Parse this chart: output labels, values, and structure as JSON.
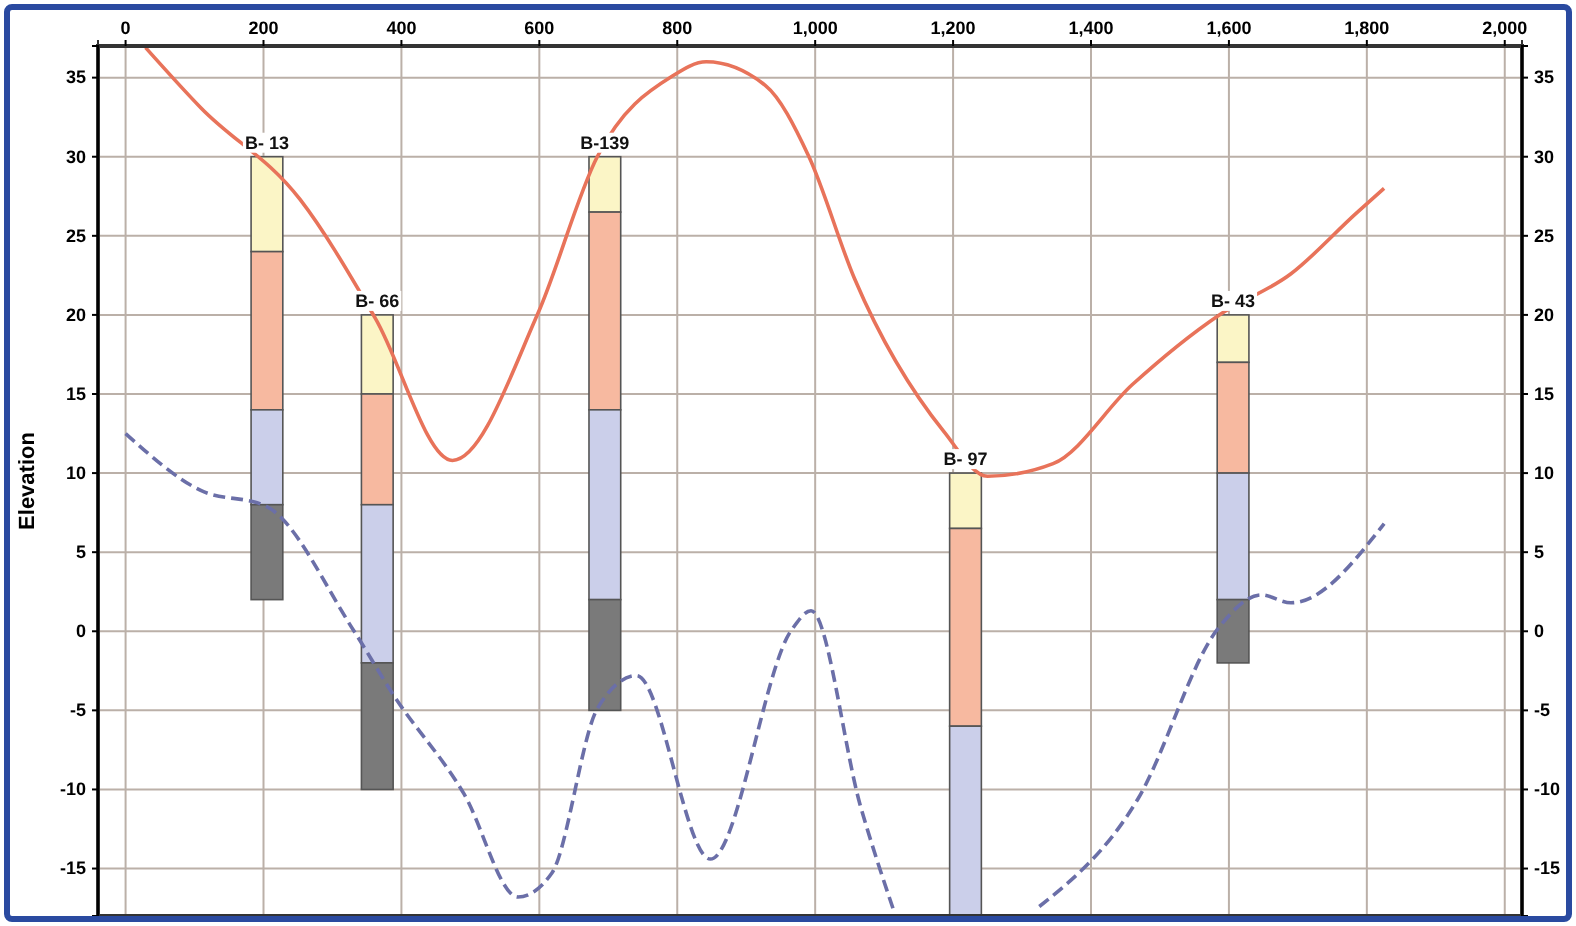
{
  "chart_data": {
    "type": "bar",
    "ylabel": "Elevation",
    "xlim": [
      -40,
      2025
    ],
    "xticks": [
      0,
      200,
      400,
      600,
      800,
      {
        "value": 1000,
        "label": "1,000"
      },
      {
        "value": 1200,
        "label": "1,200"
      },
      {
        "value": 1400,
        "label": "1,400"
      },
      {
        "value": 1600,
        "label": "1,600"
      },
      {
        "value": 1800,
        "label": "1,800"
      },
      {
        "value": 2000,
        "label": "2,000"
      }
    ],
    "ylim": [
      -18,
      37
    ],
    "yticks": [
      -15,
      -10,
      -5,
      0,
      5,
      10,
      15,
      20,
      25,
      30,
      35
    ],
    "y2lim": [
      -18,
      37
    ],
    "y2ticks": [
      -15,
      -10,
      -5,
      0,
      5,
      10,
      15,
      20,
      25,
      30,
      35
    ],
    "grid": true,
    "series": [
      {
        "color": "#fbf5c6",
        "x": [
          205,
          365,
          695,
          1218,
          1606
        ],
        "base": [
          24,
          15,
          26.5,
          6.5,
          17
        ],
        "values": [
          6,
          5,
          3.5,
          3.5,
          3
        ]
      },
      {
        "color": "#f7b9a0",
        "x": [
          205,
          365,
          695,
          1218,
          1606
        ],
        "base": [
          14,
          8,
          14,
          -6,
          10
        ],
        "values": [
          10,
          7,
          12.5,
          12.5,
          7
        ]
      },
      {
        "color": "#cbcfea",
        "x": [
          205,
          365,
          695,
          1218,
          1606
        ],
        "base": [
          8,
          -2,
          2,
          -18,
          2
        ],
        "values": [
          6,
          10,
          12,
          12,
          8
        ]
      },
      {
        "color": "#7a7a7a",
        "x": [
          205,
          365,
          695,
          1218,
          1606
        ],
        "base": [
          2,
          -10,
          -5,
          null,
          -2
        ],
        "values": [
          6,
          8,
          7,
          null,
          4
        ]
      },
      {
        "type": "line",
        "color": "#e8735a",
        "line_style": "solid",
        "x": [
          29,
          109,
          253,
          362,
          474,
          598,
          684,
          793,
          842,
          928,
          991,
          1057,
          1187,
          1250,
          1345,
          1460,
          1586,
          1690,
          1784,
          1825
        ],
        "values": [
          36.9,
          33.1,
          27.3,
          19.8,
          10.8,
          20.1,
          30,
          35.1,
          36,
          34.5,
          30,
          22.3,
          12.6,
          9.8,
          10.6,
          15.6,
          20,
          22.6,
          26.4,
          28
        ]
      },
      {
        "type": "line",
        "color": "#6b6fa8",
        "line_style": "dashed",
        "x": [
          0,
          109,
          204,
          330,
          388,
          491,
          569,
          618,
          684,
          741,
          848,
          966,
          994,
          1066,
          1115,
          1220,
          1325,
          1468,
          1583,
          1647,
          1690,
          1825
        ],
        "values": [
          12.5,
          8.9,
          7.9,
          0.1,
          -4,
          -10.3,
          -16.8,
          -15.3,
          -4.9,
          -2.8,
          -14.4,
          0.1,
          1.3,
          -11.1,
          -17.8,
          null,
          -17.4,
          -10.6,
          0.1,
          2.3,
          1.8,
          6.8
        ]
      }
    ],
    "annotations": [
      {
        "text": "B- 13",
        "x": 205,
        "y": 30
      },
      {
        "text": "B- 66",
        "x": 365,
        "y": 20
      },
      {
        "text": "B-139",
        "x": 695,
        "y": 30
      },
      {
        "text": "B- 97",
        "x": 1218,
        "y": 10
      },
      {
        "text": "B- 43",
        "x": 1606,
        "y": 20
      }
    ]
  }
}
